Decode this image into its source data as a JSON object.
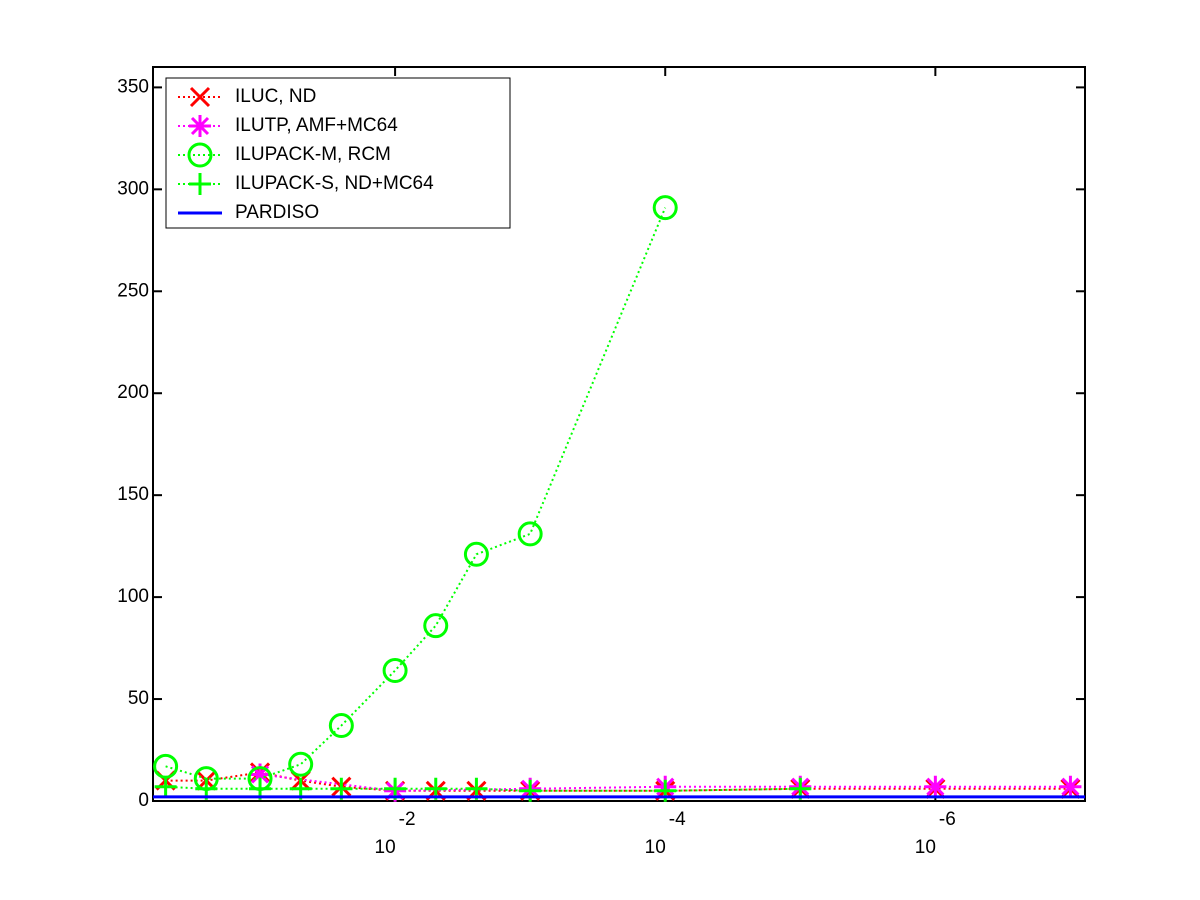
{
  "chart_data": {
    "type": "line",
    "xscale": "log",
    "xreversed": true,
    "xlim": [
      0.62,
      7.8e-08
    ],
    "xticks": [
      {
        "value": 0.01,
        "label": "10",
        "exponent": "-2"
      },
      {
        "value": 0.0001,
        "label": "10",
        "exponent": "-4"
      },
      {
        "value": 1e-06,
        "label": "10",
        "exponent": "-6"
      }
    ],
    "ylim": [
      0,
      360
    ],
    "yticks": [
      0,
      50,
      100,
      150,
      200,
      250,
      300,
      350
    ],
    "legend": "upper-left",
    "series": [
      {
        "name": "ILUC,  ND",
        "color": "#ff0000",
        "marker": "x",
        "linestyle": "dotted",
        "x": [
          0.5,
          0.25,
          0.1,
          0.05,
          0.025,
          0.01,
          0.005,
          0.0025,
          0.001,
          0.0001,
          1e-05,
          1e-06,
          1e-07
        ],
        "values": [
          10,
          10,
          14,
          10,
          7,
          5,
          5,
          5,
          5,
          5,
          6,
          6,
          6
        ]
      },
      {
        "name": "ILUTP, AMF+MC64",
        "color": "#ff00ff",
        "marker": "*",
        "linestyle": "dotted",
        "x": [
          0.1,
          0.01,
          0.001,
          0.0001,
          1e-05,
          1e-06,
          1e-07
        ],
        "values": [
          13,
          5,
          6,
          7,
          7,
          7,
          7
        ]
      },
      {
        "name": "ILUPACK-M, RCM",
        "color": "#00ff00",
        "marker": "o",
        "linestyle": "dotted",
        "x": [
          0.5,
          0.25,
          0.1,
          0.05,
          0.025,
          0.01,
          0.005,
          0.0025,
          0.001,
          0.0001
        ],
        "values": [
          17,
          11,
          11,
          18,
          37,
          64,
          86,
          121,
          131,
          291
        ]
      },
      {
        "name": "ILUPACK-S, ND+MC64",
        "color": "#00ff00",
        "marker": "+",
        "linestyle": "dotted",
        "x": [
          0.5,
          0.25,
          0.1,
          0.05,
          0.025,
          0.01,
          0.005,
          0.0025,
          0.001,
          0.0001,
          1e-05
        ],
        "values": [
          7,
          6,
          6,
          6,
          6,
          6,
          6,
          6,
          5,
          5,
          6
        ]
      },
      {
        "name": "PARDISO",
        "color": "#0000ff",
        "marker": "none",
        "linestyle": "solid",
        "x": [
          0.62,
          7.8e-08
        ],
        "values": [
          2,
          2
        ]
      }
    ]
  }
}
